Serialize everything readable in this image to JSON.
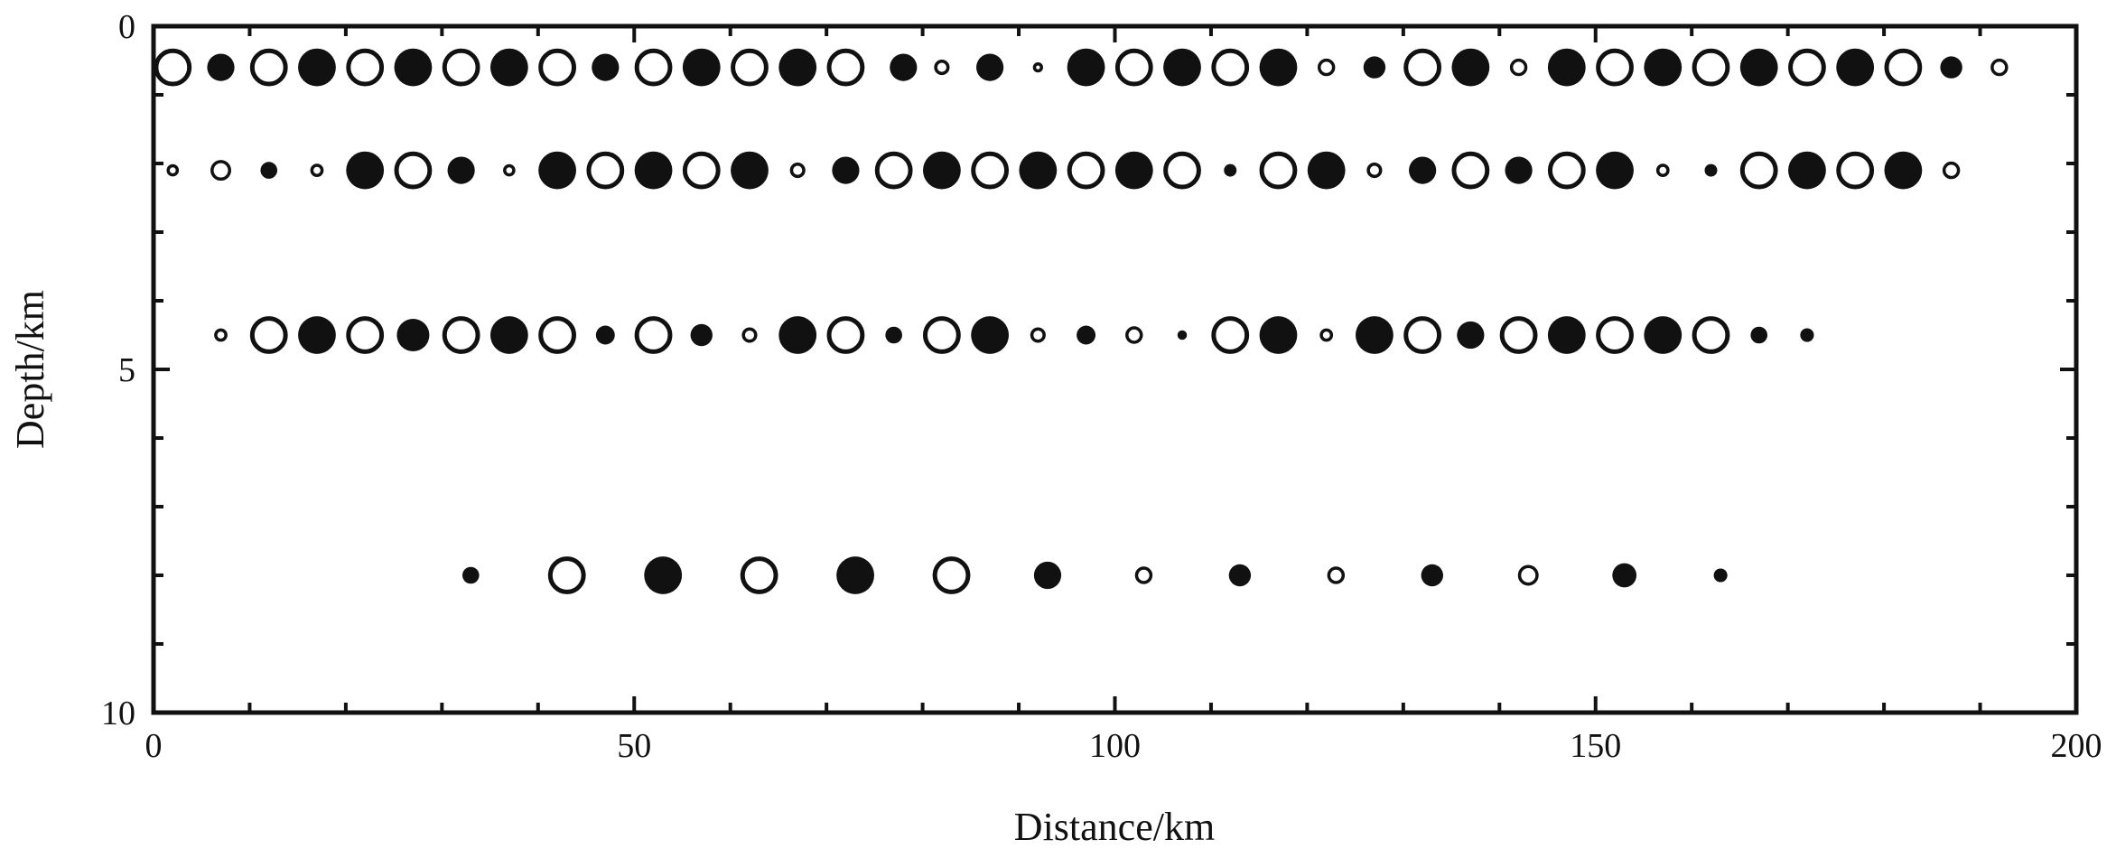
{
  "chart_data": {
    "type": "scatter",
    "xlabel": "Distance/km",
    "ylabel": "Depth/km",
    "xlim": [
      0,
      200
    ],
    "ylim": [
      0,
      10
    ],
    "y_inverted": true,
    "grid": false,
    "x_ticks": [
      0,
      50,
      100,
      150,
      200
    ],
    "y_ticks": [
      0,
      5,
      10
    ],
    "marker_encoding": "filled circle and open circle; circle size varies",
    "rows": [
      {
        "depth": 0.6,
        "points": [
          {
            "x": 2,
            "kind": "open",
            "size": 3
          },
          {
            "x": 7,
            "kind": "filled",
            "size": 2
          },
          {
            "x": 12,
            "kind": "open",
            "size": 3
          },
          {
            "x": 17,
            "kind": "filled",
            "size": 3
          },
          {
            "x": 22,
            "kind": "open",
            "size": 3
          },
          {
            "x": 27,
            "kind": "filled",
            "size": 3
          },
          {
            "x": 32,
            "kind": "open",
            "size": 3
          },
          {
            "x": 37,
            "kind": "filled",
            "size": 3
          },
          {
            "x": 42,
            "kind": "open",
            "size": 3
          },
          {
            "x": 47,
            "kind": "filled",
            "size": 2
          },
          {
            "x": 52,
            "kind": "open",
            "size": 3
          },
          {
            "x": 57,
            "kind": "filled",
            "size": 3
          },
          {
            "x": 62,
            "kind": "open",
            "size": 3
          },
          {
            "x": 67,
            "kind": "filled",
            "size": 3
          },
          {
            "x": 72,
            "kind": "open",
            "size": 3
          },
          {
            "x": 78,
            "kind": "filled",
            "size": 2
          },
          {
            "x": 82,
            "kind": "open",
            "size": 1
          },
          {
            "x": 87,
            "kind": "filled",
            "size": 2
          },
          {
            "x": 92,
            "kind": "open",
            "size": 0.5
          },
          {
            "x": 97,
            "kind": "filled",
            "size": 3
          },
          {
            "x": 102,
            "kind": "open",
            "size": 3
          },
          {
            "x": 107,
            "kind": "filled",
            "size": 3
          },
          {
            "x": 112,
            "kind": "open",
            "size": 3
          },
          {
            "x": 117,
            "kind": "filled",
            "size": 3
          },
          {
            "x": 122,
            "kind": "open",
            "size": 1.2
          },
          {
            "x": 127,
            "kind": "filled",
            "size": 1.5
          },
          {
            "x": 132,
            "kind": "open",
            "size": 3
          },
          {
            "x": 137,
            "kind": "filled",
            "size": 3
          },
          {
            "x": 142,
            "kind": "open",
            "size": 1.2
          },
          {
            "x": 147,
            "kind": "filled",
            "size": 3
          },
          {
            "x": 152,
            "kind": "open",
            "size": 3
          },
          {
            "x": 157,
            "kind": "filled",
            "size": 3
          },
          {
            "x": 162,
            "kind": "open",
            "size": 3
          },
          {
            "x": 167,
            "kind": "filled",
            "size": 3
          },
          {
            "x": 172,
            "kind": "open",
            "size": 3
          },
          {
            "x": 177,
            "kind": "filled",
            "size": 3
          },
          {
            "x": 182,
            "kind": "open",
            "size": 3
          },
          {
            "x": 187,
            "kind": "filled",
            "size": 1.5
          },
          {
            "x": 192,
            "kind": "open",
            "size": 1.2
          }
        ]
      },
      {
        "depth": 2.1,
        "points": [
          {
            "x": 2,
            "kind": "open",
            "size": 0.7
          },
          {
            "x": 7,
            "kind": "open",
            "size": 1.5
          },
          {
            "x": 12,
            "kind": "filled",
            "size": 1
          },
          {
            "x": 17,
            "kind": "open",
            "size": 0.8
          },
          {
            "x": 22,
            "kind": "filled",
            "size": 3
          },
          {
            "x": 27,
            "kind": "open",
            "size": 3
          },
          {
            "x": 32,
            "kind": "filled",
            "size": 2
          },
          {
            "x": 37,
            "kind": "open",
            "size": 0.7
          },
          {
            "x": 42,
            "kind": "filled",
            "size": 3
          },
          {
            "x": 47,
            "kind": "open",
            "size": 3
          },
          {
            "x": 52,
            "kind": "filled",
            "size": 3
          },
          {
            "x": 57,
            "kind": "open",
            "size": 3
          },
          {
            "x": 62,
            "kind": "filled",
            "size": 3
          },
          {
            "x": 67,
            "kind": "open",
            "size": 1
          },
          {
            "x": 72,
            "kind": "filled",
            "size": 2
          },
          {
            "x": 77,
            "kind": "open",
            "size": 3
          },
          {
            "x": 82,
            "kind": "filled",
            "size": 3
          },
          {
            "x": 87,
            "kind": "open",
            "size": 3
          },
          {
            "x": 92,
            "kind": "filled",
            "size": 3
          },
          {
            "x": 97,
            "kind": "open",
            "size": 3
          },
          {
            "x": 102,
            "kind": "filled",
            "size": 3
          },
          {
            "x": 107,
            "kind": "open",
            "size": 3
          },
          {
            "x": 112,
            "kind": "filled",
            "size": 0.6
          },
          {
            "x": 117,
            "kind": "open",
            "size": 3
          },
          {
            "x": 122,
            "kind": "filled",
            "size": 3
          },
          {
            "x": 127,
            "kind": "open",
            "size": 1
          },
          {
            "x": 132,
            "kind": "filled",
            "size": 2
          },
          {
            "x": 137,
            "kind": "open",
            "size": 3
          },
          {
            "x": 142,
            "kind": "filled",
            "size": 2
          },
          {
            "x": 147,
            "kind": "open",
            "size": 3
          },
          {
            "x": 152,
            "kind": "filled",
            "size": 3
          },
          {
            "x": 157,
            "kind": "open",
            "size": 0.8
          },
          {
            "x": 162,
            "kind": "filled",
            "size": 0.6
          },
          {
            "x": 167,
            "kind": "open",
            "size": 3
          },
          {
            "x": 172,
            "kind": "filled",
            "size": 3
          },
          {
            "x": 177,
            "kind": "open",
            "size": 3
          },
          {
            "x": 182,
            "kind": "filled",
            "size": 3
          },
          {
            "x": 187,
            "kind": "open",
            "size": 1.2
          }
        ]
      },
      {
        "depth": 4.5,
        "points": [
          {
            "x": 7,
            "kind": "open",
            "size": 0.8
          },
          {
            "x": 12,
            "kind": "open",
            "size": 3
          },
          {
            "x": 17,
            "kind": "filled",
            "size": 3
          },
          {
            "x": 22,
            "kind": "open",
            "size": 3
          },
          {
            "x": 27,
            "kind": "filled",
            "size": 2.5
          },
          {
            "x": 32,
            "kind": "open",
            "size": 3
          },
          {
            "x": 37,
            "kind": "filled",
            "size": 3
          },
          {
            "x": 42,
            "kind": "open",
            "size": 3
          },
          {
            "x": 47,
            "kind": "filled",
            "size": 1.2
          },
          {
            "x": 52,
            "kind": "open",
            "size": 3
          },
          {
            "x": 57,
            "kind": "filled",
            "size": 1.5
          },
          {
            "x": 62,
            "kind": "open",
            "size": 1
          },
          {
            "x": 67,
            "kind": "filled",
            "size": 3
          },
          {
            "x": 72,
            "kind": "open",
            "size": 3
          },
          {
            "x": 77,
            "kind": "filled",
            "size": 1
          },
          {
            "x": 82,
            "kind": "open",
            "size": 3
          },
          {
            "x": 87,
            "kind": "filled",
            "size": 3
          },
          {
            "x": 92,
            "kind": "open",
            "size": 1
          },
          {
            "x": 97,
            "kind": "filled",
            "size": 1.2
          },
          {
            "x": 102,
            "kind": "open",
            "size": 1.2
          },
          {
            "x": 107,
            "kind": "filled",
            "size": 0.3
          },
          {
            "x": 112,
            "kind": "open",
            "size": 3
          },
          {
            "x": 117,
            "kind": "filled",
            "size": 3
          },
          {
            "x": 122,
            "kind": "open",
            "size": 0.8
          },
          {
            "x": 127,
            "kind": "filled",
            "size": 3
          },
          {
            "x": 132,
            "kind": "open",
            "size": 3
          },
          {
            "x": 137,
            "kind": "filled",
            "size": 2
          },
          {
            "x": 142,
            "kind": "open",
            "size": 3
          },
          {
            "x": 147,
            "kind": "filled",
            "size": 3
          },
          {
            "x": 152,
            "kind": "open",
            "size": 3
          },
          {
            "x": 157,
            "kind": "filled",
            "size": 3
          },
          {
            "x": 162,
            "kind": "open",
            "size": 3
          },
          {
            "x": 167,
            "kind": "filled",
            "size": 1
          },
          {
            "x": 172,
            "kind": "filled",
            "size": 0.7
          }
        ]
      },
      {
        "depth": 8,
        "points": [
          {
            "x": 33,
            "kind": "filled",
            "size": 1
          },
          {
            "x": 43,
            "kind": "open",
            "size": 3
          },
          {
            "x": 53,
            "kind": "filled",
            "size": 3
          },
          {
            "x": 63,
            "kind": "open",
            "size": 3
          },
          {
            "x": 73,
            "kind": "filled",
            "size": 3
          },
          {
            "x": 83,
            "kind": "open",
            "size": 3
          },
          {
            "x": 93,
            "kind": "filled",
            "size": 2
          },
          {
            "x": 103,
            "kind": "open",
            "size": 1.2
          },
          {
            "x": 113,
            "kind": "filled",
            "size": 1.5
          },
          {
            "x": 123,
            "kind": "open",
            "size": 1.2
          },
          {
            "x": 133,
            "kind": "filled",
            "size": 1.5
          },
          {
            "x": 143,
            "kind": "open",
            "size": 1.5
          },
          {
            "x": 153,
            "kind": "filled",
            "size": 1.7
          },
          {
            "x": 163,
            "kind": "filled",
            "size": 0.7
          }
        ]
      }
    ]
  }
}
